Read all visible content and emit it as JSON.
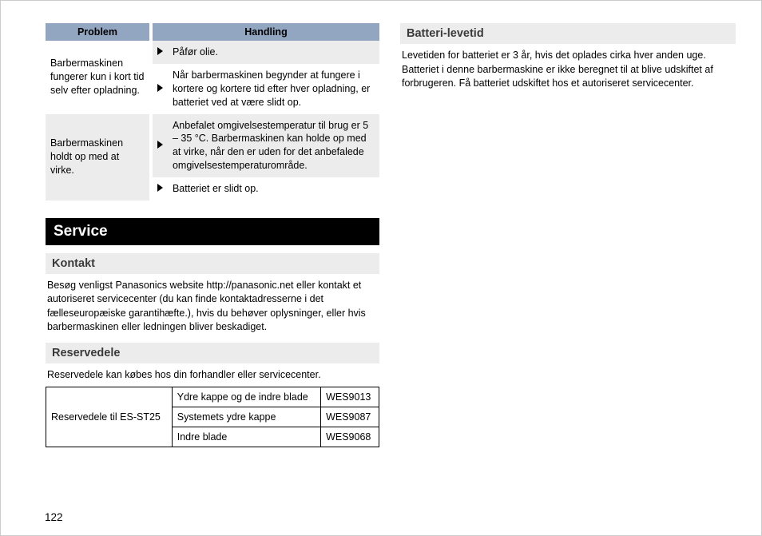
{
  "colors": {
    "header_bg": "#92a6c2",
    "row_gray": "#ececec",
    "row_white": "#ffffff",
    "section_bg": "#000000",
    "section_fg": "#ffffff",
    "sub_bg": "#ececec",
    "body_text": "#000000",
    "border": "#000000"
  },
  "trouble": {
    "head_problem": "Problem",
    "head_handling": "Handling",
    "r1_problem": "Barbermaskinen fungerer kun i kort tid selv efter opladning.",
    "r1_h1": "Påfør olie.",
    "r1_h2": "Når barbermaskinen begynder at fungere i kortere og kortere tid efter hver opladning, er batteriet ved at være slidt op.",
    "r2_problem": "Barbermaskinen holdt op med at virke.",
    "r2_h1": "Anbefalet omgivelsestemperatur til brug er 5 – 35 °C. Barbermaskinen kan holde op med at virke, når den er uden for det anbefalede omgivelsestemperaturområde.",
    "r2_h2": "Batteriet er slidt op."
  },
  "service": {
    "title": "Service",
    "kontakt_title": "Kontakt",
    "kontakt_body": "Besøg venligst Panasonics website http://panasonic.net eller kontakt et autoriseret servicecenter (du kan finde kontaktadresserne i det fælleseuropæiske garantihæfte.), hvis du behøver oplysninger, eller hvis barbermaskinen eller ledningen bliver beskadiget.",
    "reservedele_title": "Reservedele",
    "reservedele_body": "Reservedele kan købes hos din forhandler eller servicecenter.",
    "parts_label": "Reservedele til ES‑ST25",
    "part1_desc": "Ydre kappe og de indre blade",
    "part1_code": "WES9013",
    "part2_desc": "Systemets ydre kappe",
    "part2_code": "WES9087",
    "part3_desc": "Indre blade",
    "part3_code": "WES9068"
  },
  "battery": {
    "title": "Batteri-levetid",
    "body": "Levetiden for batteriet er 3 år, hvis det oplades cirka hver anden uge. Batteriet i denne barbermaskine er ikke beregnet til at blive udskiftet af forbrugeren. Få batteriet udskiftet hos et autoriseret servicecenter."
  },
  "page_number": "122"
}
